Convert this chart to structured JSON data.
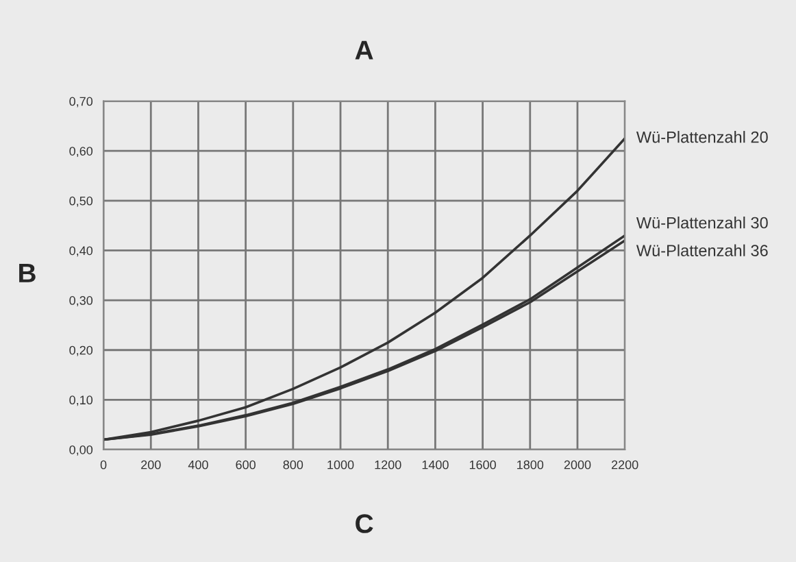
{
  "chart_data": {
    "type": "line",
    "title": "A",
    "xlabel": "C",
    "ylabel": "B",
    "x": [
      0,
      200,
      400,
      600,
      800,
      1000,
      1200,
      1400,
      1600,
      1800,
      2000,
      2200
    ],
    "series": [
      {
        "name": "Wü-Plattenzahl 20",
        "color": "#333333",
        "values": [
          0.02,
          0.035,
          0.058,
          0.085,
          0.122,
          0.165,
          0.215,
          0.275,
          0.345,
          0.43,
          0.52,
          0.625
        ]
      },
      {
        "name": "Wü-Plattenzahl 30",
        "color": "#333333",
        "values": [
          0.02,
          0.031,
          0.048,
          0.069,
          0.094,
          0.126,
          0.161,
          0.202,
          0.251,
          0.302,
          0.366,
          0.43
        ]
      },
      {
        "name": "Wü-Plattenzahl 36",
        "color": "#333333",
        "values": [
          0.02,
          0.03,
          0.047,
          0.067,
          0.092,
          0.123,
          0.158,
          0.198,
          0.246,
          0.296,
          0.358,
          0.42
        ]
      }
    ],
    "xlim": [
      0,
      2200
    ],
    "xticks": [
      0,
      200,
      400,
      600,
      800,
      1000,
      1200,
      1400,
      1600,
      1800,
      2000,
      2200
    ],
    "ylim": [
      0,
      0.7
    ],
    "yticks": [
      {
        "value": 0,
        "label": "0,00"
      },
      {
        "value": 0.1,
        "label": "0,10"
      },
      {
        "value": 0.2,
        "label": "0,20"
      },
      {
        "value": 0.3,
        "label": "0,30"
      },
      {
        "value": 0.4,
        "label": "0,40"
      },
      {
        "value": 0.5,
        "label": "0,50"
      },
      {
        "value": 0.6,
        "label": "0,60"
      },
      {
        "value": 0.7,
        "label": "0,70"
      }
    ],
    "grid": true,
    "legend": false,
    "marker": "none",
    "line_style": "solid"
  }
}
